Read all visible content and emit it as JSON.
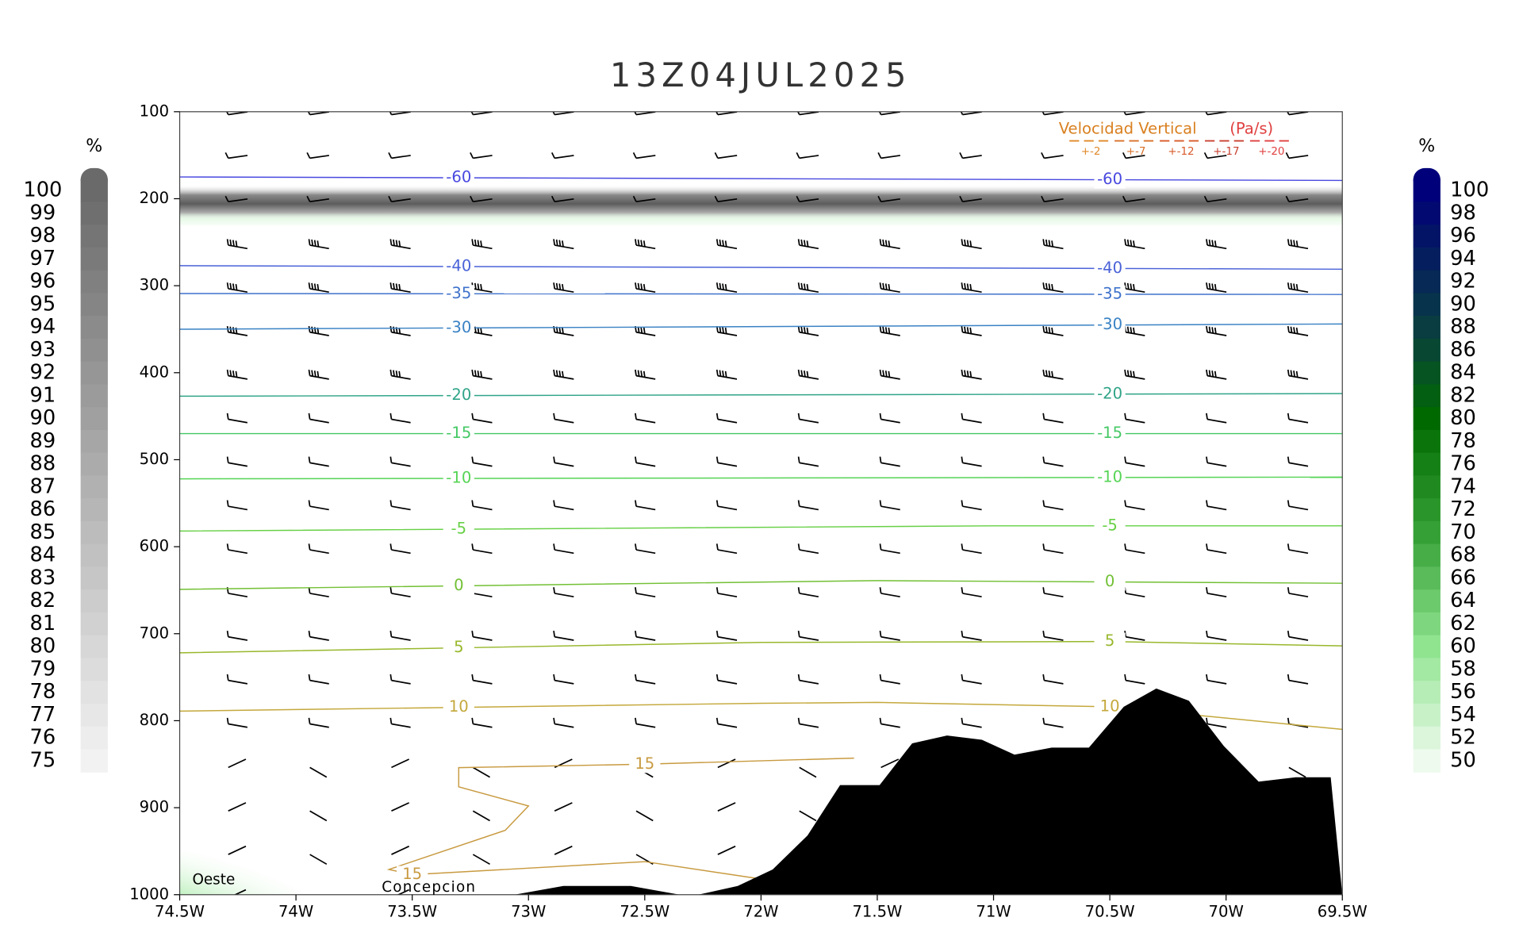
{
  "chart_data": {
    "type": "contour",
    "title": "13Z04JUL2025",
    "xlim": [
      -74.5,
      -69.5
    ],
    "xticks": [
      {
        "value": -74.5,
        "label": "74.5W"
      },
      {
        "value": -74,
        "label": "74W"
      },
      {
        "value": -73.5,
        "label": "73.5W"
      },
      {
        "value": -73,
        "label": "73W"
      },
      {
        "value": -72.5,
        "label": "72.5W"
      },
      {
        "value": -72,
        "label": "72W"
      },
      {
        "value": -71.5,
        "label": "71.5W"
      },
      {
        "value": -71,
        "label": "71W"
      },
      {
        "value": -70.5,
        "label": "70.5W"
      },
      {
        "value": -70,
        "label": "70W"
      },
      {
        "value": -69.5,
        "label": "69.5W"
      }
    ],
    "ylim": [
      1000,
      100
    ],
    "yticks": [
      100,
      200,
      300,
      400,
      500,
      600,
      700,
      800,
      900,
      1000
    ],
    "contours": [
      {
        "level": -60,
        "color": "#4848e0",
        "x": [
          -74.5,
          -69.5
        ],
        "values": [
          175,
          179
        ]
      },
      {
        "level": -40,
        "color": "#4a62d8",
        "x": [
          -74.5,
          -69.5
        ],
        "values": [
          277,
          281
        ]
      },
      {
        "level": -35,
        "color": "#3f72cc",
        "x": [
          -74.5,
          -69.5
        ],
        "values": [
          309,
          310
        ]
      },
      {
        "level": -30,
        "color": "#3a82c4",
        "x": [
          -74.5,
          -69.5
        ],
        "values": [
          350,
          344
        ]
      },
      {
        "level": -20,
        "color": "#30a488",
        "x": [
          -74.5,
          -69.5
        ],
        "values": [
          427,
          424
        ]
      },
      {
        "level": -15,
        "color": "#44c864",
        "x": [
          -74.5,
          -69.5
        ],
        "values": [
          470,
          470
        ]
      },
      {
        "level": -10,
        "color": "#55d455",
        "x": [
          -74.5,
          -69.5
        ],
        "values": [
          522,
          520
        ]
      },
      {
        "level": -5,
        "color": "#66d044",
        "x": [
          -74.5,
          -71,
          -69.5
        ],
        "values": [
          582,
          576,
          576
        ]
      },
      {
        "level": 0,
        "color": "#72c034",
        "x": [
          -74.5,
          -71.5,
          -69.5
        ],
        "values": [
          649,
          639,
          642
        ]
      },
      {
        "level": 5,
        "color": "#98b82c",
        "x": [
          -74.5,
          -72,
          -70.5,
          -69.5
        ],
        "values": [
          722,
          710,
          709,
          714
        ]
      },
      {
        "level": 10,
        "color": "#c4a83c",
        "x": [
          -74.5,
          -72,
          -71.5,
          -70.5,
          -69.5
        ],
        "values": [
          789,
          780,
          779,
          784,
          810
        ]
      },
      {
        "level": 15,
        "color": "#c89a40",
        "x": [
          -71.6,
          -72.5,
          -73.3,
          -73.3,
          -73.0,
          -73.1,
          -73.6,
          -73.5,
          -72.5,
          -72.0,
          -71.9
        ],
        "values": [
          843,
          850,
          854,
          876,
          898,
          926,
          971,
          977,
          962,
          982,
          993
        ]
      }
    ],
    "terrain": {
      "color": "#000000",
      "x": [
        -73.06,
        -72.85,
        -72.56,
        -72.35,
        -72.27,
        -72.1,
        -71.95,
        -71.8,
        -71.66,
        -71.49,
        -71.35,
        -71.2,
        -71.05,
        -70.91,
        -70.75,
        -70.59,
        -70.44,
        -70.3,
        -70.16,
        -70.01,
        -69.86,
        -69.7,
        -69.55,
        -69.5
      ],
      "values": [
        1000,
        990,
        990,
        1000,
        1000,
        990,
        971,
        932,
        874,
        874,
        826,
        817,
        822,
        839,
        831,
        831,
        784,
        763,
        777,
        829,
        870,
        865,
        865,
        1000
      ]
    },
    "colorbars": [
      {
        "label": "%",
        "ticks": [
          100,
          99,
          98,
          97,
          96,
          95,
          94,
          93,
          92,
          91,
          90,
          89,
          88,
          87,
          86,
          85,
          84,
          83,
          82,
          81,
          80,
          79,
          78,
          77,
          76,
          75
        ]
      },
      {
        "label": "%",
        "ticks": [
          100,
          98,
          96,
          94,
          92,
          90,
          88,
          86,
          84,
          82,
          80,
          78,
          76,
          74,
          72,
          70,
          68,
          66,
          64,
          62,
          60,
          58,
          56,
          54,
          52,
          50
        ]
      }
    ],
    "vertical_velocity_legend": {
      "title": "Velocidad Vertical",
      "units": "(Pa/s)",
      "levels": [
        "+-2",
        "+-7",
        "+-12",
        "+-17",
        "+-20"
      ]
    },
    "annotations": [
      "Oeste",
      "Concepcion"
    ]
  }
}
